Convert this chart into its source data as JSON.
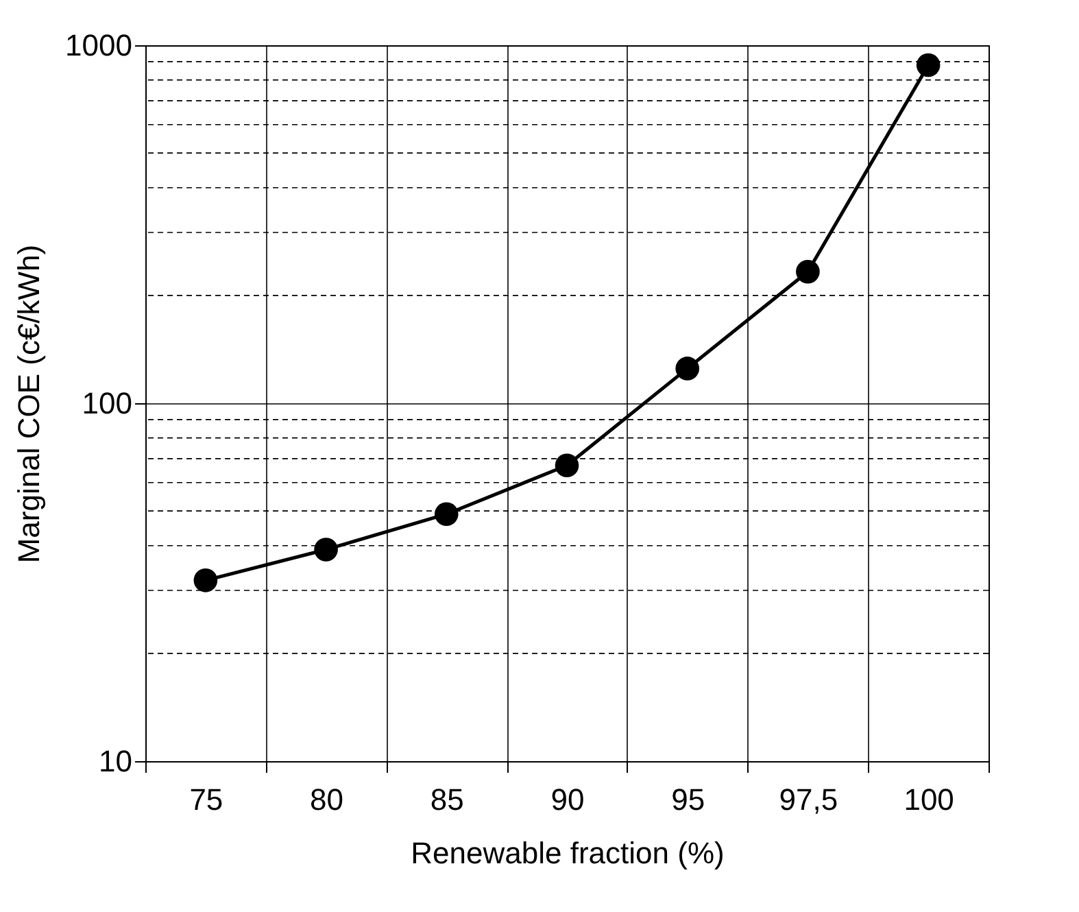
{
  "chart_data": {
    "type": "line",
    "xlabel": "Renewable fraction (%)",
    "ylabel": "Marginal COE (c€/kWh)",
    "categories": [
      "75",
      "80",
      "85",
      "90",
      "95",
      "97,5",
      "100"
    ],
    "series": [
      {
        "color": "#000000",
        "values": [
          32,
          39,
          49,
          67,
          125,
          233,
          880
        ]
      }
    ],
    "ylim": [
      10,
      1000
    ],
    "yticks": [
      10,
      100,
      1000
    ],
    "log": true,
    "grid": true,
    "marker": "circle",
    "line_style": "solid"
  }
}
